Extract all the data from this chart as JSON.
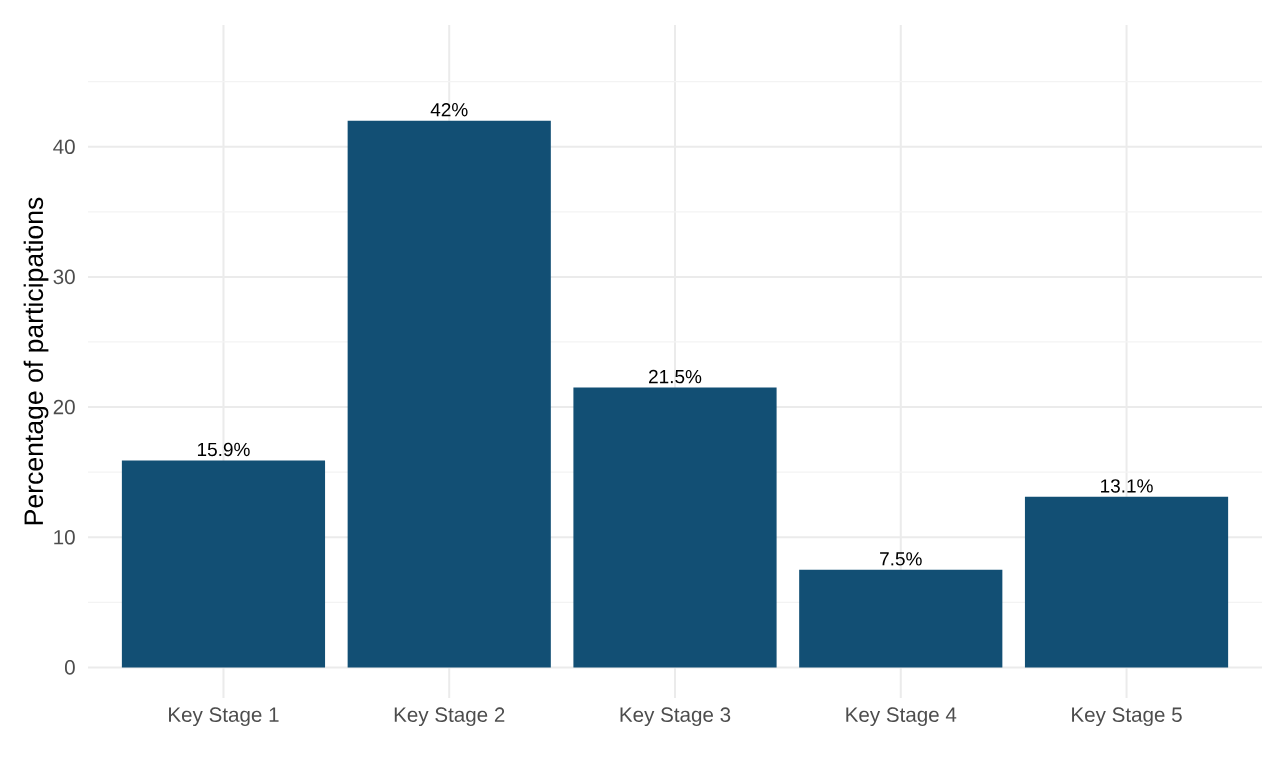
{
  "chart_data": {
    "type": "bar",
    "ylabel": "Percentage of participations",
    "categories": [
      "Key Stage 1",
      "Key Stage 2",
      "Key Stage 3",
      "Key Stage 4",
      "Key Stage 5"
    ],
    "values": [
      15.9,
      42,
      21.5,
      7.5,
      13.1
    ],
    "value_labels": [
      "15.9%",
      "42%",
      "21.5%",
      "7.5%",
      "13.1%"
    ],
    "color": "#124f74",
    "ylim": [
      -2.35,
      49.35
    ],
    "yticks": [
      0,
      {
        "value": 5,
        "label": null
      },
      10,
      {
        "value": 15,
        "label": null
      },
      20,
      {
        "value": 25,
        "label": null
      },
      30,
      {
        "value": 35,
        "label": null
      },
      40,
      {
        "value": 45,
        "label": null
      }
    ],
    "grid": true
  }
}
